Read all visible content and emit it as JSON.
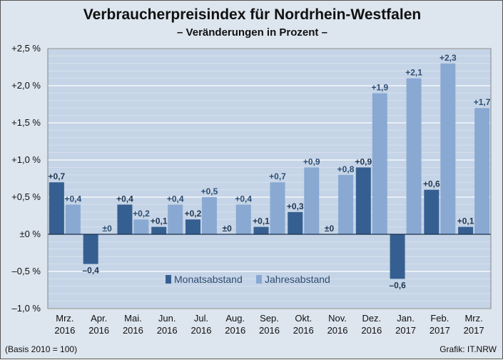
{
  "chart_data": {
    "type": "bar",
    "title": "Verbraucherpreisindex  für Nordrhein-Westfalen",
    "subtitle": "– Veränderungen in Prozent –",
    "categories": [
      [
        "Mrz.",
        "2016"
      ],
      [
        "Apr.",
        "2016"
      ],
      [
        "Mai.",
        "2016"
      ],
      [
        "Jun.",
        "2016"
      ],
      [
        "Jul.",
        "2016"
      ],
      [
        "Aug.",
        "2016"
      ],
      [
        "Sep.",
        "2016"
      ],
      [
        "Okt.",
        "2016"
      ],
      [
        "Nov.",
        "2016"
      ],
      [
        "Dez.",
        "2016"
      ],
      [
        "Jan.",
        "2017"
      ],
      [
        "Feb.",
        "2017"
      ],
      [
        "Mrz.",
        "2017"
      ]
    ],
    "series": [
      {
        "name": "Monatsabstand",
        "color": "#365f91",
        "values": [
          0.7,
          -0.4,
          0.4,
          0.1,
          0.2,
          0.0,
          0.1,
          0.3,
          0.0,
          0.9,
          -0.6,
          0.6,
          0.1
        ],
        "labels": [
          "+0,7",
          "–0,4",
          "+0,4",
          "+0,1",
          "+0,2",
          "±0",
          "+0,1",
          "+0,3",
          "±0",
          "+0,9",
          "–0,6",
          "+0,6",
          "+0,1"
        ]
      },
      {
        "name": "Jahresabstand",
        "color": "#89a9d3",
        "values": [
          0.4,
          0.0,
          0.2,
          0.4,
          0.5,
          0.4,
          0.7,
          0.9,
          0.8,
          1.9,
          2.1,
          2.3,
          1.7
        ],
        "labels": [
          "+0,4",
          "±0",
          "+0,2",
          "+0,4",
          "+0,5",
          "+0,4",
          "+0,7",
          "+0,9",
          "+0,8",
          "+1,9",
          "+2,1",
          "+2,3",
          "+1,7"
        ]
      }
    ],
    "yticks": [
      2.5,
      2.0,
      1.5,
      1.0,
      0.5,
      0.0,
      -0.5,
      -1.0
    ],
    "ytick_labels": [
      "+2,5 %",
      "+2,0 %",
      "+1,5 %",
      "+1,0 %",
      "+0,5 %",
      "±0 %",
      "–0,5 %",
      "–1,0 %"
    ],
    "ylim": [
      -1.0,
      2.5
    ],
    "grid": true,
    "legend": "bottom-center",
    "colors": {
      "plot_bg": "#c5d4e6",
      "label_text": "#2d4d72",
      "grid": "#ffffff"
    }
  },
  "footer": {
    "note": "(Basis 2010 = 100)",
    "source": "Grafik: IT.NRW"
  }
}
